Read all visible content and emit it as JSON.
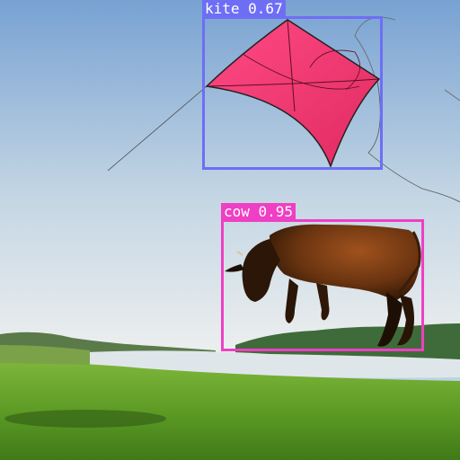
{
  "detections": [
    {
      "label": "kite 0.67",
      "color": "#6e6ef5"
    },
    {
      "label": "cow 0.95",
      "color": "#ef3fc4"
    }
  ],
  "scene": {
    "sky_top": "#7fa6d4",
    "sky_bottom": "#e6ecf0",
    "grass": "#5f9a2a",
    "water": "#dfe6ea",
    "kite_color": "#f0336f",
    "cow_color": "#6a3410"
  }
}
